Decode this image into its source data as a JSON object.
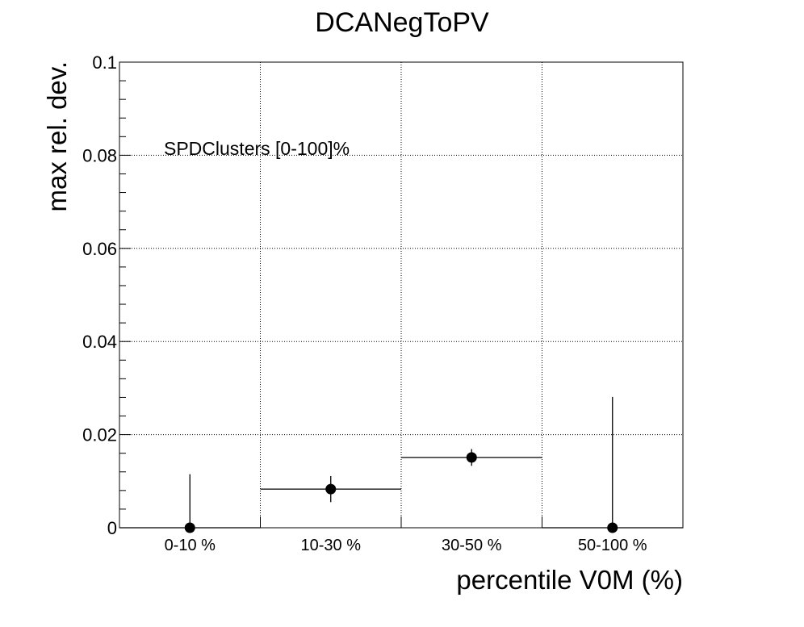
{
  "chart_data": {
    "type": "scatter",
    "title": "DCANegToPV",
    "xlabel": "percentile V0M (%)",
    "ylabel": "max rel. dev.",
    "annotation": "SPDClusters [0-100]%",
    "categories": [
      "0-10 %",
      "10-30 %",
      "30-50 %",
      "50-100 %"
    ],
    "ylim": [
      0,
      0.1
    ],
    "yticks": [
      "0",
      "0.02",
      "0.04",
      "0.06",
      "0.08",
      "0.1"
    ],
    "grid": true,
    "legend": "none",
    "series": [
      {
        "values": [
          0.0,
          0.0083,
          0.0151,
          0.0
        ],
        "err_low": [
          0.0,
          0.0028,
          0.0018,
          0.0
        ],
        "err_high": [
          0.0115,
          0.0028,
          0.0018,
          0.0281
        ]
      }
    ],
    "colors": {
      "marker": "#000000",
      "axis": "#000000",
      "grid": "#000000"
    }
  }
}
